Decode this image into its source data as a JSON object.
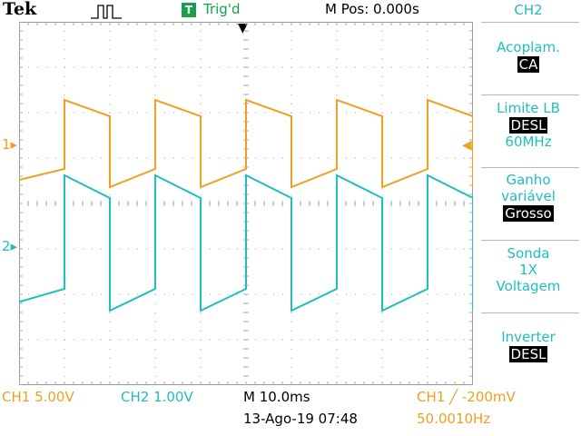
{
  "header": {
    "brand": "Tek",
    "acquire_icon": "acquisition-pulse-icon",
    "trigger_badge": "T",
    "trigger_status": "Trig'd",
    "m_pos": "M Pos: 0.000s"
  },
  "markers": {
    "ch1": "1",
    "ch2": "2"
  },
  "menu": {
    "title": "CH2",
    "coupling_label": "Acoplam.",
    "coupling_value": "CA",
    "bw_label": "Limite LB",
    "bw_value": "DESL",
    "bw_freq": "60MHz",
    "gain_label_1": "Ganho",
    "gain_label_2": "variável",
    "gain_value": "Grosso",
    "probe_label": "Sonda",
    "probe_value": "1X",
    "probe_unit": "Voltagem",
    "invert_label": "Inverter",
    "invert_value": "DESL"
  },
  "status": {
    "ch1_scale": "CH1  5.00V",
    "ch2_scale": "CH2  1.00V",
    "timebase": "M 10.0ms",
    "date": "13-Ago-19 07:48",
    "trigger_readout": "CH1 ╱ -200mV",
    "frequency": "50.0010Hz"
  },
  "colors": {
    "ch1": "#f0a020",
    "ch2": "#1fbfbf",
    "trigger_badge": "#18a04a"
  }
}
